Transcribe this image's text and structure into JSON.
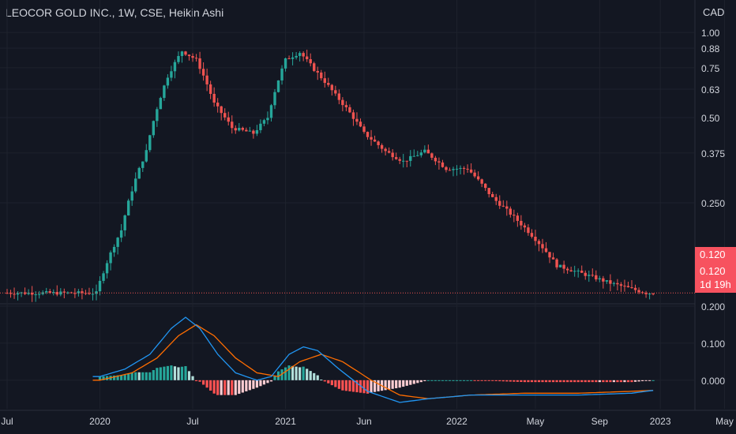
{
  "header": {
    "title": "LEOCOR GOLD INC., 1W, CSE, Heikin Ashi",
    "currency": "CAD"
  },
  "price_badges": {
    "last_price": "0.120",
    "close_price": "0.120",
    "countdown": "1d 19h"
  },
  "colors": {
    "background": "#131722",
    "up": "#26a69a",
    "down": "#ef5350",
    "macd_line": "#2196f3",
    "signal_line": "#ff6d00",
    "hist_up": "#26a69a",
    "hist_down": "#ff5252",
    "hist_up_light": "#b2dfdb",
    "hist_down_light": "#ffcdd2",
    "grid": "#1e222d",
    "text": "#d1d4dc",
    "badge": "#f7525f"
  },
  "chart_data": [
    {
      "type": "candlestick",
      "chart_style": "Heikin Ashi",
      "timeframe": "1W",
      "yscale": "log",
      "ylim": [
        0.112,
        1.02
      ],
      "y_ticks": [
        "1.00",
        "0.88",
        "0.75",
        "0.63",
        "0.50",
        "0.375",
        "0.250"
      ],
      "x_ticks": [
        "Jul",
        "2020",
        "Jul",
        "2021",
        "Jun",
        "2022",
        "May",
        "Sep",
        "2023",
        "May"
      ],
      "x_tick_weeks": [
        0,
        26,
        52,
        78,
        100,
        126,
        148,
        166,
        183,
        201
      ],
      "anchors": [
        [
          0,
          0.12
        ],
        [
          15,
          0.12
        ],
        [
          26,
          0.12
        ],
        [
          33,
          0.2
        ],
        [
          40,
          0.38
        ],
        [
          46,
          0.7
        ],
        [
          50,
          0.86
        ],
        [
          54,
          0.8
        ],
        [
          59,
          0.56
        ],
        [
          64,
          0.46
        ],
        [
          70,
          0.44
        ],
        [
          74,
          0.5
        ],
        [
          79,
          0.8
        ],
        [
          83,
          0.85
        ],
        [
          87,
          0.74
        ],
        [
          93,
          0.6
        ],
        [
          101,
          0.44
        ],
        [
          107,
          0.38
        ],
        [
          112,
          0.35
        ],
        [
          118,
          0.38
        ],
        [
          124,
          0.33
        ],
        [
          130,
          0.33
        ],
        [
          137,
          0.26
        ],
        [
          145,
          0.21
        ],
        [
          155,
          0.15
        ],
        [
          170,
          0.13
        ],
        [
          180,
          0.12
        ],
        [
          187,
          0.12
        ]
      ],
      "series": [
        {
          "name": "",
          "values": "weekly OHLC interpolated from anchors (close, CAD)"
        }
      ]
    },
    {
      "type": "line",
      "name": "MACD",
      "ylim": [
        -0.06,
        0.2
      ],
      "y_ticks": [
        "0.200",
        "0.100",
        "0.000"
      ],
      "macd_anchors": [
        [
          26,
          0.01
        ],
        [
          33,
          0.03
        ],
        [
          40,
          0.07
        ],
        [
          46,
          0.14
        ],
        [
          50,
          0.17
        ],
        [
          54,
          0.14
        ],
        [
          59,
          0.07
        ],
        [
          64,
          0.02
        ],
        [
          70,
          0.0
        ],
        [
          74,
          0.01
        ],
        [
          79,
          0.07
        ],
        [
          83,
          0.09
        ],
        [
          87,
          0.08
        ],
        [
          93,
          0.03
        ],
        [
          101,
          -0.03
        ],
        [
          110,
          -0.06
        ],
        [
          118,
          -0.05
        ],
        [
          130,
          -0.04
        ],
        [
          145,
          -0.04
        ],
        [
          160,
          -0.04
        ],
        [
          175,
          -0.035
        ],
        [
          187,
          -0.02
        ]
      ],
      "signal_anchors": [
        [
          26,
          0.0
        ],
        [
          35,
          0.02
        ],
        [
          42,
          0.06
        ],
        [
          48,
          0.12
        ],
        [
          53,
          0.15
        ],
        [
          58,
          0.12
        ],
        [
          64,
          0.06
        ],
        [
          70,
          0.02
        ],
        [
          76,
          0.01
        ],
        [
          82,
          0.05
        ],
        [
          88,
          0.07
        ],
        [
          94,
          0.05
        ],
        [
          102,
          0.0
        ],
        [
          110,
          -0.04
        ],
        [
          118,
          -0.05
        ],
        [
          130,
          -0.04
        ],
        [
          145,
          -0.035
        ],
        [
          160,
          -0.035
        ],
        [
          175,
          -0.03
        ],
        [
          187,
          -0.025
        ]
      ]
    }
  ]
}
